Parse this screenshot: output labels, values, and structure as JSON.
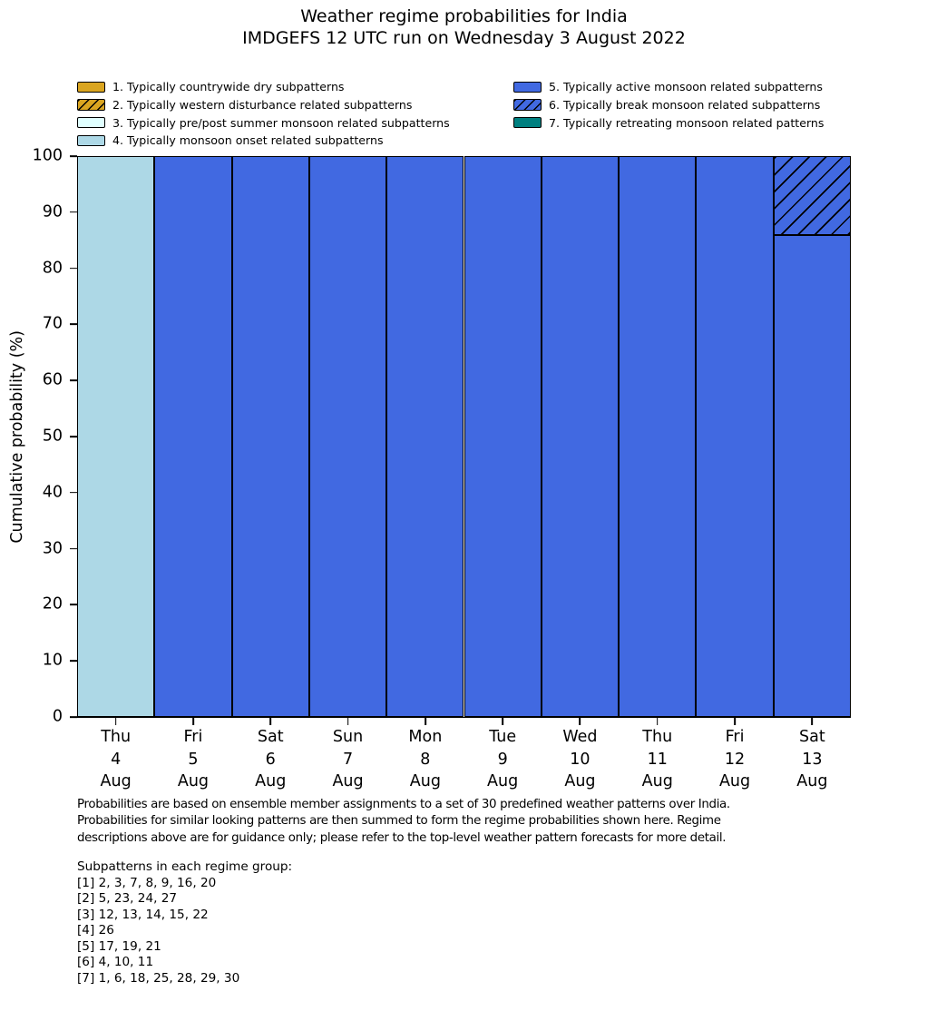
{
  "title": {
    "line1": "Weather regime probabilities for India",
    "line2": "IMDGEFS 12 UTC run on Wednesday 3 August 2022"
  },
  "legend": {
    "items": [
      {
        "label": "1. Typically countrywide dry subpatterns",
        "color": "#DAA520",
        "hatch": false
      },
      {
        "label": "2. Typically western disturbance related subpatterns",
        "color": "#DAA520",
        "hatch": true
      },
      {
        "label": "3. Typically pre/post summer monsoon related subpatterns",
        "color": "#E0FFFF",
        "hatch": false
      },
      {
        "label": "4. Typically monsoon onset related subpatterns",
        "color": "#ADD8E6",
        "hatch": false
      },
      {
        "label": "5. Typically active monsoon related subpatterns",
        "color": "#4169E1",
        "hatch": false
      },
      {
        "label": "6. Typically break monsoon related subpatterns",
        "color": "#4169E1",
        "hatch": true
      },
      {
        "label": "7. Typically retreating monsoon related patterns",
        "color": "#008080",
        "hatch": false
      }
    ]
  },
  "chart_data": {
    "type": "bar",
    "stacked": true,
    "title": "Weather regime probabilities for India — IMDGEFS 12 UTC run on Wednesday 3 August 2022",
    "xlabel": "",
    "ylabel": "Cumulative probability (%)",
    "ylim": [
      0,
      100
    ],
    "yticks": [
      0,
      10,
      20,
      30,
      40,
      50,
      60,
      70,
      80,
      90,
      100
    ],
    "grid": false,
    "legend_position": "top",
    "categories": [
      {
        "day": "Thu",
        "date": "4",
        "month": "Aug"
      },
      {
        "day": "Fri",
        "date": "5",
        "month": "Aug"
      },
      {
        "day": "Sat",
        "date": "6",
        "month": "Aug"
      },
      {
        "day": "Sun",
        "date": "7",
        "month": "Aug"
      },
      {
        "day": "Mon",
        "date": "8",
        "month": "Aug"
      },
      {
        "day": "Tue",
        "date": "9",
        "month": "Aug"
      },
      {
        "day": "Wed",
        "date": "10",
        "month": "Aug"
      },
      {
        "day": "Thu",
        "date": "11",
        "month": "Aug"
      },
      {
        "day": "Fri",
        "date": "12",
        "month": "Aug"
      },
      {
        "day": "Sat",
        "date": "13",
        "month": "Aug"
      }
    ],
    "series": [
      {
        "name": "1. Typically countrywide dry subpatterns",
        "color": "#DAA520",
        "hatch": false,
        "values": [
          0,
          0,
          0,
          0,
          0,
          0,
          0,
          0,
          0,
          0
        ]
      },
      {
        "name": "2. Typically western disturbance related subpatterns",
        "color": "#DAA520",
        "hatch": true,
        "values": [
          0,
          0,
          0,
          0,
          0,
          0,
          0,
          0,
          0,
          0
        ]
      },
      {
        "name": "3. Typically pre/post summer monsoon related subpatterns",
        "color": "#E0FFFF",
        "hatch": false,
        "values": [
          0,
          0,
          0,
          0,
          0,
          0,
          0,
          0,
          0,
          0
        ]
      },
      {
        "name": "4. Typically monsoon onset related subpatterns",
        "color": "#ADD8E6",
        "hatch": false,
        "values": [
          100,
          0,
          0,
          0,
          0,
          0,
          0,
          0,
          0,
          0
        ]
      },
      {
        "name": "5. Typically active monsoon related subpatterns",
        "color": "#4169E1",
        "hatch": false,
        "values": [
          0,
          100,
          100,
          100,
          100,
          100,
          100,
          100,
          100,
          86
        ]
      },
      {
        "name": "6. Typically break monsoon related subpatterns",
        "color": "#4169E1",
        "hatch": true,
        "values": [
          0,
          0,
          0,
          0,
          0,
          0,
          0,
          0,
          0,
          14
        ]
      },
      {
        "name": "7. Typically retreating monsoon related patterns",
        "color": "#008080",
        "hatch": false,
        "values": [
          0,
          0,
          0,
          0,
          0,
          0,
          0,
          0,
          0,
          0
        ]
      }
    ]
  },
  "footnote": {
    "lines": [
      "Probabilities are based on ensemble member assignments to a set of 30 predefined weather patterns over India.",
      "Probabilities for similar looking patterns are then summed to form the regime probabilities shown here. Regime",
      "descriptions above are for guidance only; please refer to the top-level weather pattern forecasts for more detail."
    ]
  },
  "subpatterns": {
    "heading": "Subpatterns in each regime group:",
    "lines": [
      "[1] 2, 3, 7, 8, 9, 16, 20",
      "[2] 5, 23, 24, 27",
      "[3] 12, 13, 14, 15, 22",
      "[4] 26",
      "[5] 17, 19, 21",
      "[6] 4, 10, 11",
      "[7] 1, 6, 18, 25, 28, 29, 30"
    ]
  }
}
